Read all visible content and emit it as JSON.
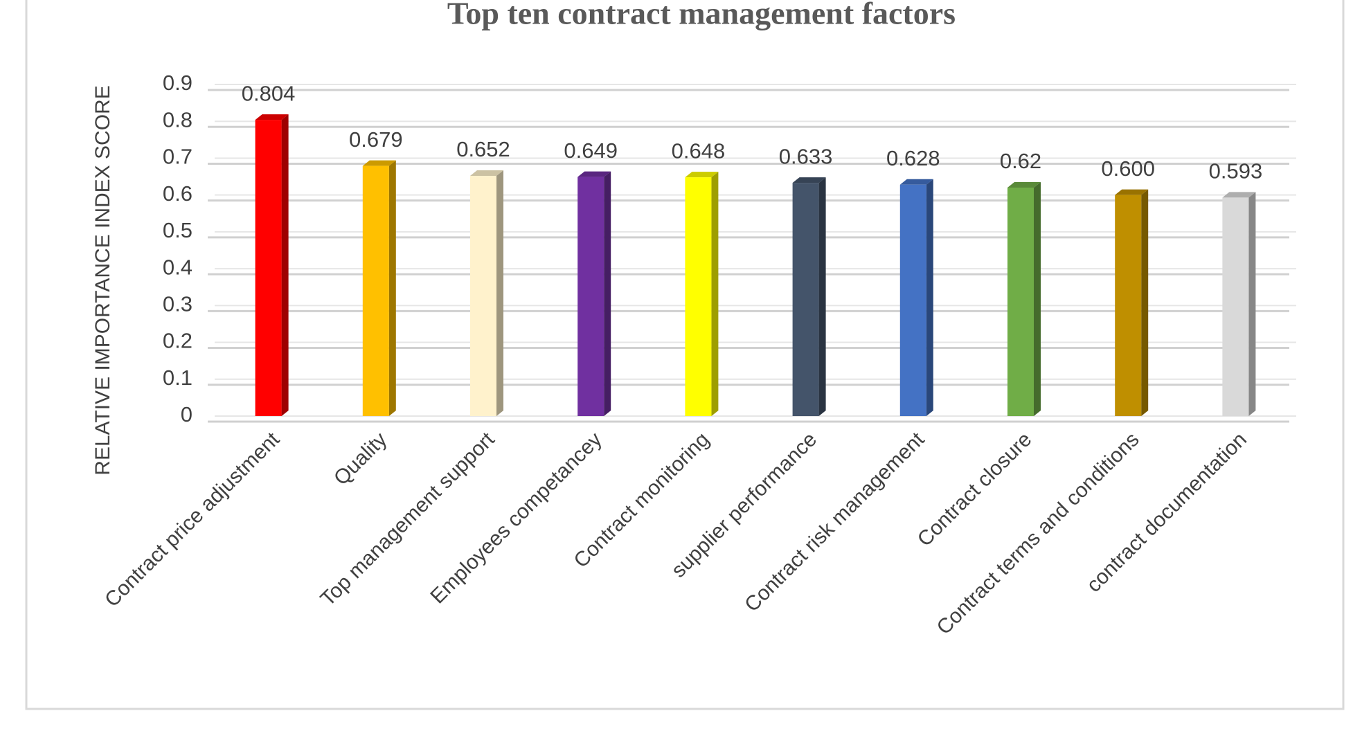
{
  "chart_data": {
    "type": "bar",
    "title": "Top ten contract management factors",
    "y_label": "RELATIVE IMPORTANCE INDEX SCORE",
    "categories": [
      "Contract price adjustment",
      "Quality",
      "Top management support",
      "Employees competancey",
      "Contract monitoring",
      "supplier performance",
      "Contract risk management",
      "Contract closure",
      "Contract terms and conditions",
      "contract documentation"
    ],
    "values": [
      0.804,
      0.679,
      0.652,
      0.649,
      0.648,
      0.633,
      0.628,
      0.62,
      0.6,
      0.593
    ],
    "value_labels": [
      "0.804",
      "0.679",
      "0.652",
      "0.649",
      "0.648",
      "0.633",
      "0.628",
      "0.62",
      "0.600",
      "0.593"
    ],
    "colors": [
      "#ff0000",
      "#ffc000",
      "#fff2cc",
      "#7030a0",
      "#ffff00",
      "#44546a",
      "#4472c4",
      "#70ad47",
      "#bf8f00",
      "#d9d9d9"
    ],
    "ylim": [
      0,
      0.9
    ],
    "yticks": [
      0,
      0.1,
      0.2,
      0.3,
      0.4,
      0.5,
      0.6,
      0.7,
      0.8,
      0.9
    ],
    "grid": true
  }
}
